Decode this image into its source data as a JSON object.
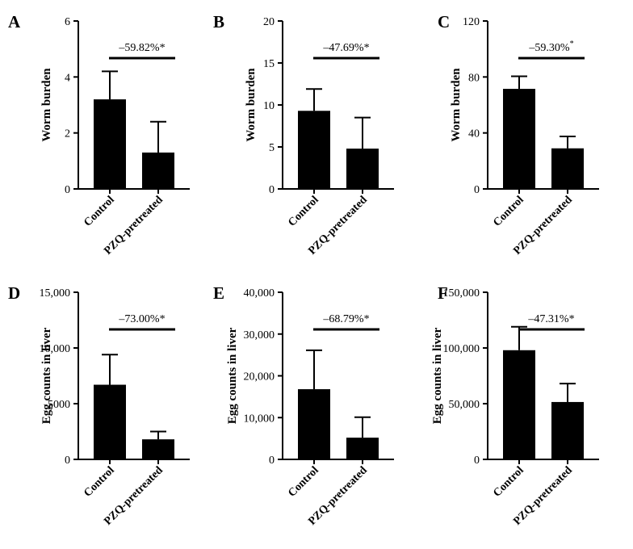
{
  "chart_data": [
    {
      "type": "bar",
      "panel": "A",
      "ylabel": "Worm burden",
      "categories": [
        "Control",
        "PZQ-pretreated"
      ],
      "values": [
        3.2,
        1.3
      ],
      "error": [
        1.0,
        1.1
      ],
      "ylim": [
        0,
        6
      ],
      "yticks": [
        "0",
        "2",
        "4",
        "6"
      ],
      "ytick_values": [
        0,
        2,
        4,
        6
      ],
      "annotation": {
        "text": "–59.82%*",
        "superscript": ""
      }
    },
    {
      "type": "bar",
      "panel": "B",
      "ylabel": "Worm burden",
      "categories": [
        "Control",
        "PZQ-pretreated"
      ],
      "values": [
        9.3,
        4.8
      ],
      "error": [
        2.6,
        3.7
      ],
      "ylim": [
        0,
        20
      ],
      "yticks": [
        "0",
        "5",
        "10",
        "15",
        "20"
      ],
      "ytick_values": [
        0,
        5,
        10,
        15,
        20
      ],
      "annotation": {
        "text": "–47.69%*",
        "superscript": ""
      }
    },
    {
      "type": "bar",
      "panel": "C",
      "ylabel": "Worm burden",
      "categories": [
        "Control",
        "PZQ-pretreated"
      ],
      "values": [
        71.5,
        29
      ],
      "error": [
        9,
        8.5
      ],
      "ylim": [
        0,
        120
      ],
      "yticks": [
        "0",
        "40",
        "80",
        "120"
      ],
      "ytick_values": [
        0,
        40,
        80,
        120
      ],
      "annotation": {
        "text": "–59.30%",
        "superscript": "*"
      }
    },
    {
      "type": "bar",
      "panel": "D",
      "ylabel": "Egg counts in liver",
      "categories": [
        "Control",
        "PZQ-pretreated"
      ],
      "values": [
        6700,
        1800
      ],
      "error": [
        2700,
        700
      ],
      "ylim": [
        0,
        15000
      ],
      "yticks": [
        "0",
        "5000",
        "10,000",
        "15,000"
      ],
      "ytick_values": [
        0,
        5000,
        10000,
        15000
      ],
      "annotation": {
        "text": "–73.00%*",
        "superscript": ""
      }
    },
    {
      "type": "bar",
      "panel": "E",
      "ylabel": "Egg counts in liver",
      "categories": [
        "Control",
        "PZQ-pretreated"
      ],
      "values": [
        16800,
        5200
      ],
      "error": [
        9300,
        4900
      ],
      "ylim": [
        0,
        40000
      ],
      "yticks": [
        "0",
        "10,000",
        "20,000",
        "30,000",
        "40,000"
      ],
      "ytick_values": [
        0,
        10000,
        20000,
        30000,
        40000
      ],
      "annotation": {
        "text": "–68.79%*",
        "superscript": ""
      }
    },
    {
      "type": "bar",
      "panel": "F",
      "ylabel": "Egg counts in liver",
      "categories": [
        "Control",
        "PZQ-pretreated"
      ],
      "values": [
        98000,
        51500
      ],
      "error": [
        21000,
        16500
      ],
      "ylim": [
        0,
        150000
      ],
      "yticks": [
        "0",
        "50,000",
        "100,000",
        "150,000"
      ],
      "ytick_values": [
        0,
        50000,
        100000,
        150000
      ],
      "annotation": {
        "text": "–47.31%*",
        "superscript": ""
      }
    }
  ]
}
